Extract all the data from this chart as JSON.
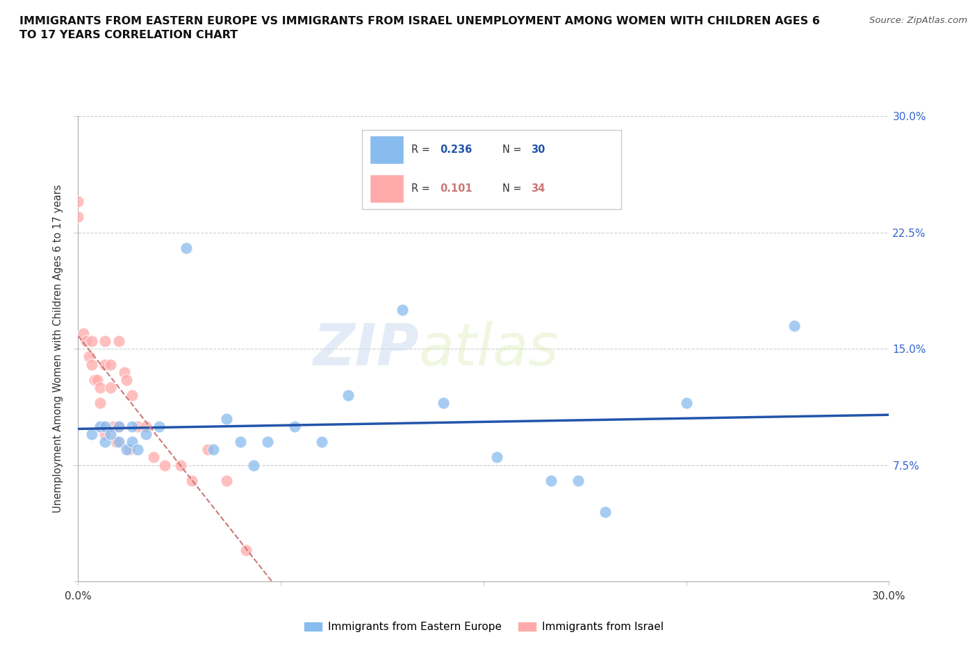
{
  "title": "IMMIGRANTS FROM EASTERN EUROPE VS IMMIGRANTS FROM ISRAEL UNEMPLOYMENT AMONG WOMEN WITH CHILDREN AGES 6\nTO 17 YEARS CORRELATION CHART",
  "source": "Source: ZipAtlas.com",
  "ylabel": "Unemployment Among Women with Children Ages 6 to 17 years",
  "xlim": [
    0.0,
    0.3
  ],
  "ylim": [
    0.0,
    0.3
  ],
  "yticks": [
    0.0,
    0.075,
    0.15,
    0.225,
    0.3
  ],
  "ytick_labels": [
    "",
    "7.5%",
    "15.0%",
    "22.5%",
    "30.0%"
  ],
  "watermark_zip": "ZIP",
  "watermark_atlas": "atlas",
  "R_eastern": 0.236,
  "N_eastern": 30,
  "R_israel": 0.101,
  "N_israel": 34,
  "color_eastern": "#88BBEE",
  "color_israel": "#FFAAAA",
  "color_eastern_line": "#2255AA",
  "color_israel_line": "#CC7777",
  "eastern_x": [
    0.005,
    0.008,
    0.01,
    0.01,
    0.012,
    0.015,
    0.015,
    0.018,
    0.02,
    0.02,
    0.022,
    0.025,
    0.03,
    0.04,
    0.05,
    0.055,
    0.06,
    0.065,
    0.07,
    0.08,
    0.09,
    0.1,
    0.12,
    0.135,
    0.155,
    0.175,
    0.185,
    0.195,
    0.225,
    0.265
  ],
  "eastern_y": [
    0.095,
    0.1,
    0.1,
    0.09,
    0.095,
    0.1,
    0.09,
    0.085,
    0.1,
    0.09,
    0.085,
    0.095,
    0.1,
    0.215,
    0.085,
    0.105,
    0.09,
    0.075,
    0.09,
    0.1,
    0.09,
    0.12,
    0.175,
    0.115,
    0.08,
    0.065,
    0.065,
    0.045,
    0.115,
    0.165
  ],
  "israel_x": [
    0.0,
    0.0,
    0.002,
    0.003,
    0.004,
    0.005,
    0.005,
    0.006,
    0.007,
    0.008,
    0.008,
    0.009,
    0.01,
    0.01,
    0.01,
    0.012,
    0.012,
    0.013,
    0.014,
    0.015,
    0.015,
    0.017,
    0.018,
    0.019,
    0.02,
    0.022,
    0.025,
    0.028,
    0.032,
    0.038,
    0.042,
    0.048,
    0.055,
    0.062
  ],
  "israel_y": [
    0.245,
    0.235,
    0.16,
    0.155,
    0.145,
    0.155,
    0.14,
    0.13,
    0.13,
    0.125,
    0.115,
    0.1,
    0.155,
    0.14,
    0.095,
    0.14,
    0.125,
    0.1,
    0.09,
    0.155,
    0.1,
    0.135,
    0.13,
    0.085,
    0.12,
    0.1,
    0.1,
    0.08,
    0.075,
    0.075,
    0.065,
    0.085,
    0.065,
    0.02
  ]
}
